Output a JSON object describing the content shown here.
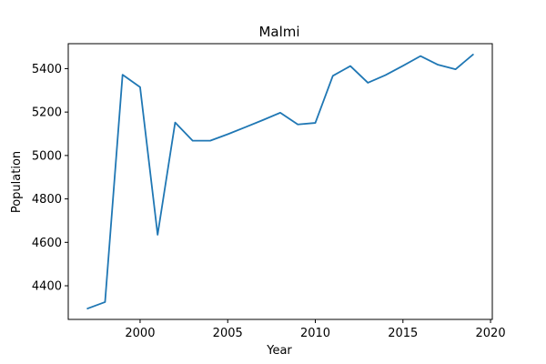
{
  "chart_data": {
    "type": "line",
    "title": "Malmi",
    "xlabel": "Year",
    "ylabel": "Population",
    "xlim": [
      1995.9,
      2020.1
    ],
    "ylim": [
      4245,
      5515
    ],
    "xticks": [
      2000,
      2005,
      2010,
      2015,
      2020
    ],
    "yticks": [
      4400,
      4600,
      4800,
      5000,
      5200,
      5400
    ],
    "grid": false,
    "line_color": "#1f77b4",
    "series": [
      {
        "x": [
          1997,
          1998,
          1999,
          2000,
          2001,
          2002,
          2003,
          2004,
          2005,
          2006,
          2007,
          2008,
          2009,
          2010,
          2011,
          2012,
          2013,
          2014,
          2015,
          2016,
          2017,
          2018,
          2019
        ],
        "values": [
          4295,
          4325,
          5372,
          5315,
          4635,
          5152,
          5068,
          5068,
          5098,
          5130,
          5163,
          5197,
          5143,
          5150,
          5367,
          5412,
          5335,
          5370,
          5413,
          5458,
          5418,
          5397,
          5465
        ]
      }
    ]
  }
}
